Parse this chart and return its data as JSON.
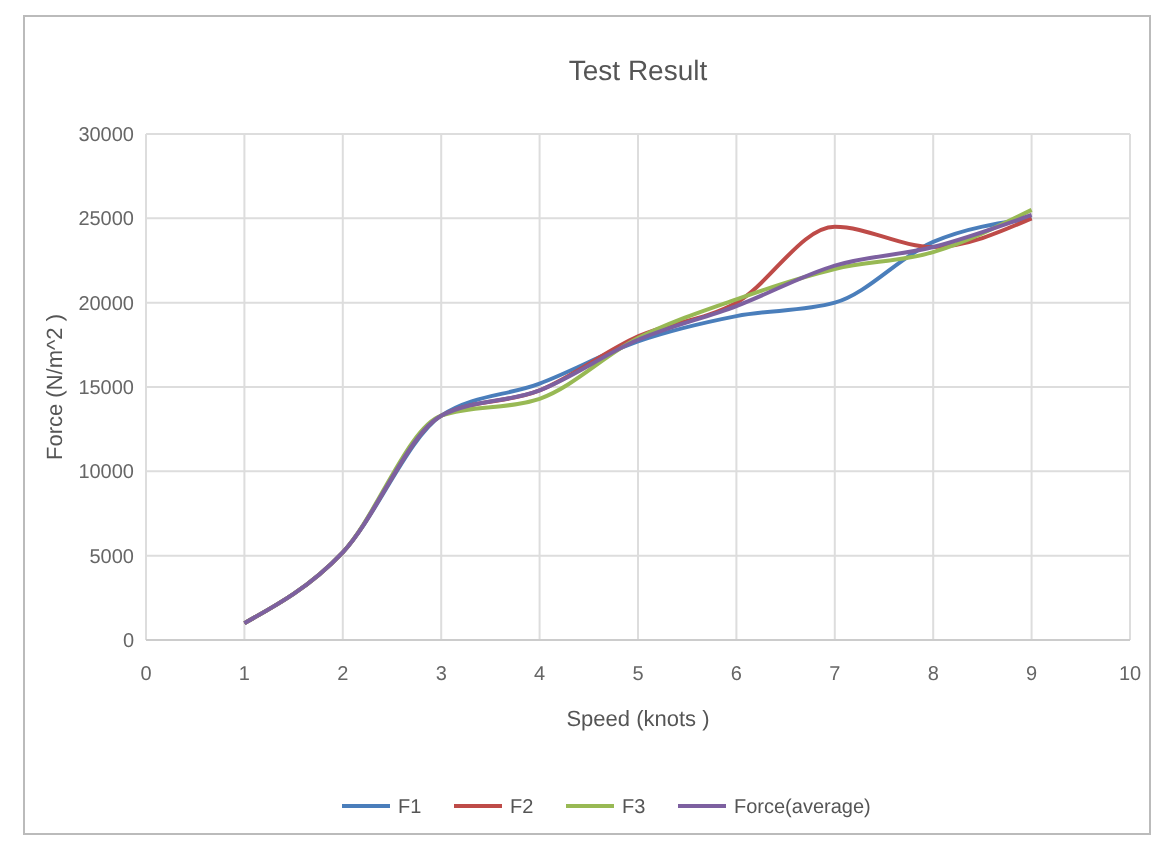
{
  "chart_data": {
    "type": "line",
    "title": "Test Result",
    "xlabel": "Speed (knots )",
    "ylabel": "Force (N/m^2 )",
    "x": [
      1,
      2,
      3,
      4,
      5,
      6,
      7,
      8,
      9
    ],
    "series": [
      {
        "name": "F1",
        "color": "#4a7ebb",
        "values": [
          1000,
          5200,
          13300,
          15200,
          17700,
          19200,
          20000,
          23600,
          25000
        ]
      },
      {
        "name": "F2",
        "color": "#be4b48",
        "values": [
          1000,
          5200,
          13300,
          14800,
          18000,
          20000,
          24500,
          23300,
          25000
        ]
      },
      {
        "name": "F3",
        "color": "#98b954",
        "values": [
          1000,
          5200,
          13300,
          14300,
          17900,
          20200,
          22000,
          23000,
          25500
        ]
      },
      {
        "name": "Force(average)",
        "color": "#7d60a0",
        "values": [
          1000,
          5200,
          13300,
          14800,
          17800,
          19800,
          22200,
          23300,
          25200
        ]
      }
    ],
    "xlim": [
      0,
      10
    ],
    "xticks": [
      0,
      1,
      2,
      3,
      4,
      5,
      6,
      7,
      8,
      9,
      10
    ],
    "ylim": [
      0,
      30000
    ],
    "yticks": [
      0,
      5000,
      10000,
      15000,
      20000,
      25000,
      30000
    ],
    "grid": true,
    "legend": "bottom",
    "marker": "none",
    "line_style": "solid"
  }
}
